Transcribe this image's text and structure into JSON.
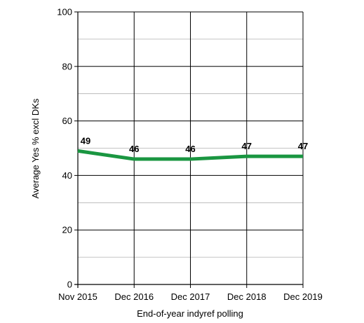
{
  "chart_data": {
    "type": "line",
    "categories": [
      "Nov 2015",
      "Dec 2016",
      "Dec 2017",
      "Dec 2018",
      "Dec 2019"
    ],
    "series": [
      {
        "values": [
          49,
          46,
          46,
          47,
          47
        ],
        "color": "#1a9641"
      }
    ],
    "data_labels": [
      "49",
      "46",
      "46",
      "47",
      "47"
    ],
    "xlabel": "End-of-year indyref polling",
    "ylabel": "Average Yes % excl DKs",
    "ylim": [
      0,
      100
    ],
    "yticks": [
      0,
      20,
      40,
      60,
      80,
      100
    ],
    "grid": {
      "major": true,
      "minor_horizontal": true,
      "vertical": true
    },
    "legend": "none"
  }
}
